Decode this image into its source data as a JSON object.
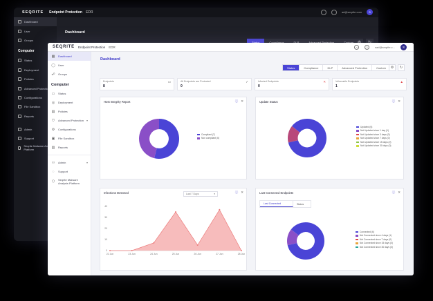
{
  "back": {
    "logo": "SEQRITE",
    "product": "Endpoint Protection",
    "edition": "EDR",
    "email": "ad@seqrite.com",
    "avatar": "S",
    "title": "Dashboard",
    "sidebar": [
      {
        "label": "Dashboard",
        "active": true
      },
      {
        "label": "User"
      },
      {
        "label": "Groups"
      }
    ],
    "section": "Computer",
    "computer_items": [
      "Status",
      "Deployment",
      "Policies",
      "Advanced Protection",
      "Configurations",
      "File Sandbox",
      "Reports"
    ],
    "extra_items": [
      "Admin",
      "Support",
      "Seqrite Malware Analysis Platform"
    ],
    "tabs": [
      "Status",
      "Compliance",
      "DLP",
      "Advanced Protection",
      "Custom"
    ]
  },
  "app": {
    "logo": "SEQRITE",
    "product": "Endpoint Protection",
    "edition": "EDR",
    "email": "sad@seqrite.c...",
    "avatar": "S"
  },
  "sidebar": {
    "top_items": [
      {
        "label": "Dashboard",
        "icon": "grid-icon",
        "active": true
      },
      {
        "label": "User",
        "icon": "user-icon"
      },
      {
        "label": "Groups",
        "icon": "groups-icon"
      }
    ],
    "section": "Computer",
    "computer_items": [
      {
        "label": "Status",
        "icon": "status-icon"
      },
      {
        "label": "Deployment",
        "icon": "deployment-icon"
      },
      {
        "label": "Policies",
        "icon": "policies-icon"
      },
      {
        "label": "Advanced Protection",
        "icon": "shield-icon",
        "chevron": true
      },
      {
        "label": "Configurations",
        "icon": "config-icon"
      },
      {
        "label": "File Sandbox",
        "icon": "sandbox-icon"
      },
      {
        "label": "Reports",
        "icon": "reports-icon"
      }
    ],
    "extra_items": [
      {
        "label": "Admin",
        "icon": "admin-icon",
        "chevron": true
      },
      {
        "label": "Support",
        "icon": "support-icon"
      },
      {
        "label": "Seqrite Malware Analysis Platform",
        "icon": "platform-icon"
      }
    ]
  },
  "main": {
    "title": "Dashboard",
    "tabs": [
      "Status",
      "Compliance",
      "DLP",
      "Advanced Protection",
      "Custom"
    ],
    "stats": [
      {
        "label": "Endpoints",
        "value": "8",
        "icon": "monitor-icon",
        "color": "#555555"
      },
      {
        "label": "All Endpoints are Protected",
        "value": "0",
        "icon": "check-icon",
        "color": "#555555"
      },
      {
        "label": "Infected Endpoints",
        "value": "0",
        "icon": "x-icon",
        "color": "#e0474c"
      },
      {
        "label": "Vulnerable Endpoints",
        "value": "1",
        "icon": "warning-icon",
        "color": "#e0474c"
      }
    ],
    "integrity": {
      "title": "Host Integrity Report",
      "legend": [
        {
          "label": "Compliant (7)",
          "color": "#4a44d6"
        },
        {
          "label": "Non compliant (6)",
          "color": "#8a4fc7"
        }
      ]
    },
    "update": {
      "title": "Update Status",
      "legend": [
        {
          "label": "Updated (6)",
          "color": "#4a44d6"
        },
        {
          "label": "Not Updated since 1 day (1)",
          "color": "#8a4fc7"
        },
        {
          "label": "Not Updated since 3 days (0)",
          "color": "#e0474c"
        },
        {
          "label": "Not Updated since 7 days (0)",
          "color": "#e8a43c"
        },
        {
          "label": "Not Updated since 15 days (0)",
          "color": "#8bc34a"
        },
        {
          "label": "Not Updated since 30 days (0)",
          "color": "#cddc39"
        }
      ]
    },
    "infections": {
      "title": "Infections Detected",
      "select": "Last 7 Days"
    },
    "last_connected": {
      "title": "Last Connected Endpoints",
      "subtabs": [
        "Last Connected",
        "Status"
      ],
      "legend": [
        {
          "label": "Connected (6)",
          "color": "#4a44d6"
        },
        {
          "label": "Not Connected since 4 days (1)",
          "color": "#8a4fc7"
        },
        {
          "label": "Not Connected since 7 days (0)",
          "color": "#e0474c"
        },
        {
          "label": "Not Connected since 15 days (0)",
          "color": "#e8a43c"
        },
        {
          "label": "Not Connected since 30 days (0)",
          "color": "#26a69a"
        }
      ]
    }
  },
  "chart_data": [
    {
      "type": "pie",
      "title": "Host Integrity Report",
      "categories": [
        "Compliant",
        "Non compliant"
      ],
      "values": [
        7,
        6
      ],
      "colors": [
        "#4a44d6",
        "#8a4fc7"
      ]
    },
    {
      "type": "pie",
      "title": "Update Status",
      "categories": [
        "Updated",
        "Not Updated since 1 day"
      ],
      "values": [
        6,
        1
      ],
      "colors": [
        "#4a44d6",
        "#b8487a"
      ]
    },
    {
      "type": "area",
      "title": "Infections Detected",
      "x": [
        "22 Jun",
        "23 Jun",
        "24 Jun",
        "25 Jun",
        "26 Jun",
        "27 Jun",
        "28 Jun"
      ],
      "y": [
        0,
        0,
        7,
        35,
        5,
        37,
        0
      ],
      "yticks": [
        0,
        10,
        20,
        30,
        40
      ],
      "ylim": [
        0,
        40
      ],
      "color": "#f4a6a6"
    },
    {
      "type": "pie",
      "title": "Last Connected Endpoints",
      "categories": [
        "Connected",
        "Not Connected since 4 days"
      ],
      "values": [
        6,
        1
      ],
      "colors": [
        "#4a44d6",
        "#8a4fc7"
      ]
    }
  ]
}
